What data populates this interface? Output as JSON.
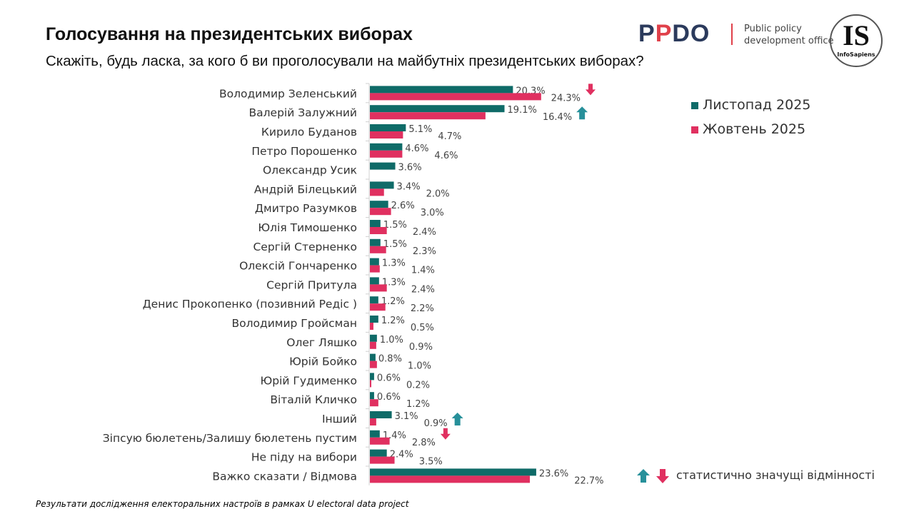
{
  "header": {
    "title": "Голосування на президентських виборах",
    "subtitle": "Скажіть, будь ласка, за кого б ви проголосували на майбутніх президентських виборах?"
  },
  "logos": {
    "ppdo": "PPDO",
    "ppdo_text_1": "Public policy",
    "ppdo_text_2": "development office",
    "is_big": "IS",
    "is_small": "InfoSapiens"
  },
  "footer": "Результати дослідження електоральних настроїв в рамках U electoral data project",
  "significance_legend": "статистично значущі відмінності",
  "chart_data": {
    "type": "bar",
    "orientation": "horizontal",
    "title": "",
    "categories": [
      "Володимир Зеленський",
      "Валерій Залужний",
      "Кирило Буданов",
      "Петро Порошенко",
      "Олександр Усик",
      "Андрій Білецький",
      "Дмитро Разумков",
      "Юлія Тимошенко",
      "Сергій Стерненко",
      "Олексій Гончаренко",
      "Сергій Притула",
      "Денис Прокопенко (позивний Редіс )",
      "Володимир Гройсман",
      "Олег Ляшко",
      "Юрій Бойко",
      "Юрій Гудименко",
      "Віталій Кличко",
      "Інший",
      "Зіпсую бюлетень/Залишу бюлетень пустим",
      "Не піду на вибори",
      "Важко сказати / Відмова"
    ],
    "series": [
      {
        "name": "Листопад 2025",
        "color": "#0f6b68",
        "values": [
          20.3,
          19.1,
          5.1,
          4.6,
          3.6,
          3.4,
          2.6,
          1.5,
          1.5,
          1.3,
          1.3,
          1.2,
          1.2,
          1.0,
          0.8,
          0.6,
          0.6,
          3.1,
          1.4,
          2.4,
          23.6
        ]
      },
      {
        "name": "Жовтень 2025",
        "color": "#e03060",
        "values": [
          24.3,
          16.4,
          4.7,
          4.6,
          null,
          2.0,
          3.0,
          2.4,
          2.3,
          1.4,
          2.4,
          2.2,
          0.5,
          0.9,
          1.0,
          0.2,
          1.2,
          0.9,
          2.8,
          3.5,
          22.7
        ]
      }
    ],
    "value_suffix": "%",
    "legend_placement": "top-right",
    "significance": [
      {
        "category": "Володимир Зеленський",
        "direction": "down",
        "icon": "arrow-down-icon",
        "color": "#e03060"
      },
      {
        "category": "Валерій Залужний",
        "direction": "up",
        "icon": "arrow-up-icon",
        "color": "#27909a"
      },
      {
        "category": "Інший",
        "direction": "up",
        "icon": "arrow-up-icon",
        "color": "#27909a"
      },
      {
        "category": "Зіпсую бюлетень/Залишу бюлетень пустим",
        "direction": "down",
        "icon": "arrow-down-icon",
        "color": "#e03060"
      }
    ],
    "xlim": [
      0,
      30
    ],
    "grid": false
  }
}
